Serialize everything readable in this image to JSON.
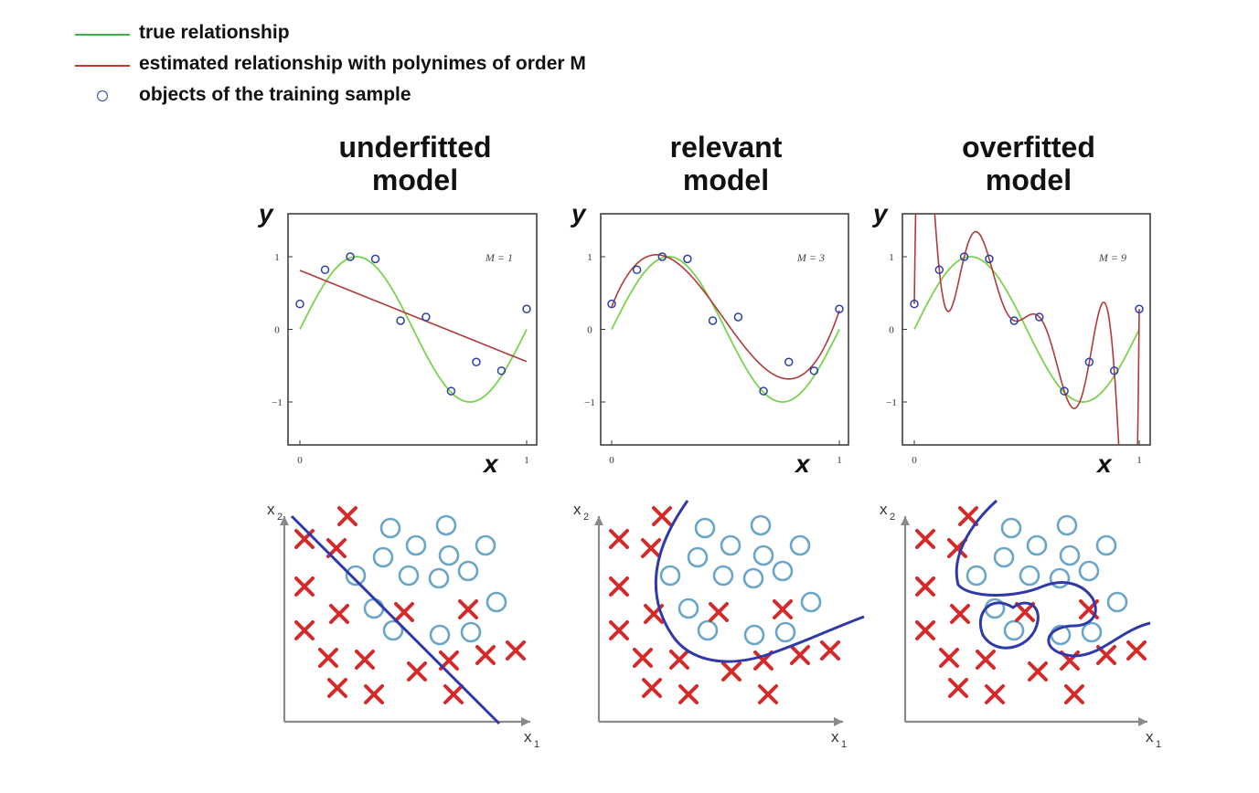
{
  "legend": [
    {
      "label": "true relationship",
      "color": "#3cb44a",
      "kind": "line"
    },
    {
      "label": "estimated relationship with polynimes of order M",
      "color": "#c0392b",
      "kind": "line"
    },
    {
      "label": "objects of the training sample",
      "color": "#2b3fa8",
      "kind": "circle"
    }
  ],
  "panels": [
    {
      "title_line1": "underfitted",
      "title_line2": "model",
      "m_label": "M = 1"
    },
    {
      "title_line1": "relevant",
      "title_line2": "model",
      "m_label": "M = 3"
    },
    {
      "title_line1": "overfitted",
      "title_line2": "model",
      "m_label": "M = 9"
    }
  ],
  "regression_axes": {
    "ylabel": "y",
    "xlabel": "x",
    "yticks": [
      "1",
      "0",
      "−1"
    ],
    "xticks": [
      "0",
      "1"
    ]
  },
  "classification_axes": {
    "x1": "x",
    "x1_sub": "1",
    "x2": "x",
    "x2_sub": "2"
  },
  "colors": {
    "true": "#3cb44a",
    "fit": "#b03a3a",
    "points": "#2b3fa8",
    "class_x": "#d42a2a",
    "class_o": "#6aa6c8",
    "boundary": "#2f3aa8"
  },
  "training_points": [
    [
      0.0,
      0.35
    ],
    [
      0.111,
      0.82
    ],
    [
      0.222,
      1.0
    ],
    [
      0.333,
      0.97
    ],
    [
      0.444,
      0.12
    ],
    [
      0.556,
      0.17
    ],
    [
      0.667,
      -0.85
    ],
    [
      0.778,
      -0.45
    ],
    [
      0.889,
      -0.57
    ],
    [
      1.0,
      0.28
    ]
  ]
}
